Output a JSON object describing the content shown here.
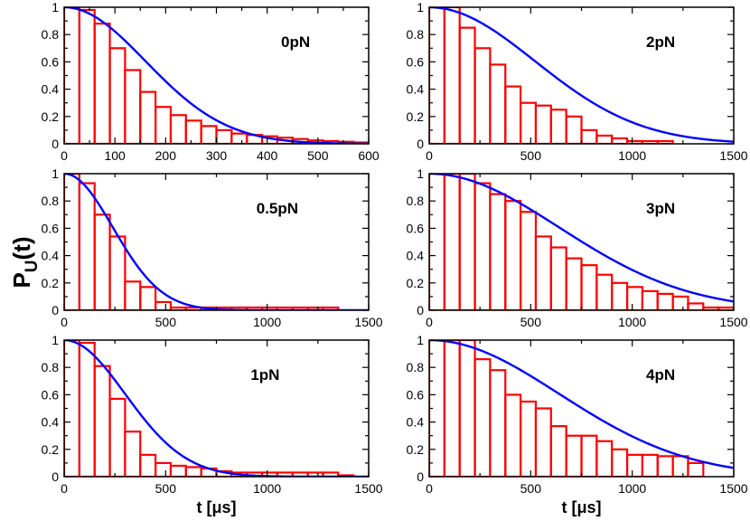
{
  "figure": {
    "ylabel_main": "P",
    "ylabel_sub": "U",
    "ylabel_suffix": "(t)",
    "bar_color": "#ff0000",
    "curve_color": "#0000ff"
  },
  "chart_data": [
    {
      "type": "bar",
      "label": "0pN",
      "xlabel": "",
      "xlim": [
        0,
        600
      ],
      "ylim": [
        0,
        1
      ],
      "xticks": [
        0,
        100,
        200,
        300,
        400,
        500,
        600
      ],
      "xtick_labels": [
        "0",
        "100",
        "200",
        "300",
        "400",
        "500",
        "600"
      ],
      "yticks": [
        0,
        0.2,
        0.4,
        0.6,
        0.8,
        1
      ],
      "ytick_labels": [
        "0",
        "0.2",
        "0.4",
        "0.6",
        "0.8",
        "1"
      ],
      "bin_edges": [
        0,
        30,
        60,
        90,
        120,
        150,
        180,
        210,
        240,
        270,
        300,
        330,
        360,
        390,
        420,
        450,
        480,
        510,
        540,
        570,
        600
      ],
      "values": [
        1.0,
        0.98,
        0.88,
        0.7,
        0.54,
        0.38,
        0.27,
        0.21,
        0.17,
        0.13,
        0.1,
        0.075,
        0.065,
        0.055,
        0.045,
        0.035,
        0.025,
        0.02,
        0.015,
        0.01
      ],
      "curve": {
        "type": "gaussian",
        "sigma": 160
      }
    },
    {
      "type": "bar",
      "label": "2pN",
      "xlabel": "",
      "xlim": [
        0,
        1500
      ],
      "ylim": [
        0,
        1
      ],
      "xticks": [
        0,
        500,
        1000,
        1500
      ],
      "xtick_labels": [
        "0",
        "500",
        "1000",
        "1500"
      ],
      "yticks": [
        0,
        0.2,
        0.4,
        0.6,
        0.8,
        1
      ],
      "ytick_labels": [
        "0",
        "0.2",
        "0.4",
        "0.6",
        "0.8",
        "1"
      ],
      "bin_edges": [
        0,
        75,
        150,
        225,
        300,
        375,
        450,
        525,
        600,
        675,
        750,
        825,
        900,
        975,
        1050,
        1125,
        1200
      ],
      "values": [
        1.0,
        1.0,
        0.85,
        0.7,
        0.58,
        0.42,
        0.3,
        0.28,
        0.25,
        0.2,
        0.1,
        0.06,
        0.04,
        0.02,
        0.02,
        0.02
      ],
      "curve": {
        "type": "gaussian",
        "sigma": 520
      }
    },
    {
      "type": "bar",
      "label": "0.5pN",
      "xlabel": "",
      "xlim": [
        0,
        1500
      ],
      "ylim": [
        0,
        1
      ],
      "xticks": [
        0,
        500,
        1000,
        1500
      ],
      "xtick_labels": [
        "0",
        "500",
        "1000",
        "1500"
      ],
      "yticks": [
        0,
        0.2,
        0.4,
        0.6,
        0.8,
        1
      ],
      "ytick_labels": [
        "0",
        "0.2",
        "0.4",
        "0.6",
        "0.8",
        "1"
      ],
      "bin_edges": [
        0,
        75,
        150,
        225,
        300,
        375,
        450,
        525,
        600,
        675,
        750,
        825,
        900,
        975,
        1050,
        1125,
        1200,
        1275,
        1350
      ],
      "values": [
        1.0,
        0.93,
        0.7,
        0.54,
        0.21,
        0.17,
        0.06,
        0.02,
        0.02,
        0.02,
        0.02,
        0.02,
        0.02,
        0.02,
        0.02,
        0.02,
        0.02,
        0.02
      ],
      "curve": {
        "type": "gaussian",
        "sigma": 240
      }
    },
    {
      "type": "bar",
      "label": "3pN",
      "xlabel": "",
      "xlim": [
        0,
        1500
      ],
      "ylim": [
        0,
        1
      ],
      "xticks": [
        0,
        500,
        1000,
        1500
      ],
      "xtick_labels": [
        "0",
        "500",
        "1000",
        "1500"
      ],
      "yticks": [
        0,
        0.2,
        0.4,
        0.6,
        0.8,
        1
      ],
      "ytick_labels": [
        "0",
        "0.2",
        "0.4",
        "0.6",
        "0.8",
        "1"
      ],
      "bin_edges": [
        0,
        75,
        150,
        225,
        300,
        375,
        450,
        525,
        600,
        675,
        750,
        825,
        900,
        975,
        1050,
        1125,
        1200,
        1275,
        1350,
        1425,
        1500
      ],
      "values": [
        1.0,
        1.0,
        1.0,
        0.93,
        0.85,
        0.8,
        0.72,
        0.54,
        0.46,
        0.38,
        0.33,
        0.26,
        0.2,
        0.17,
        0.14,
        0.12,
        0.1,
        0.05,
        0.02,
        0.02
      ],
      "curve": {
        "type": "gaussian",
        "sigma": 640
      }
    },
    {
      "type": "bar",
      "label": "1pN",
      "xlabel": "t [μs]",
      "xlim": [
        0,
        1500
      ],
      "ylim": [
        0,
        1
      ],
      "xticks": [
        0,
        500,
        1000,
        1500
      ],
      "xtick_labels": [
        "0",
        "500",
        "1000",
        "1500"
      ],
      "yticks": [
        0,
        0.2,
        0.4,
        0.6,
        0.8,
        1
      ],
      "ytick_labels": [
        "0",
        "0.2",
        "0.4",
        "0.6",
        "0.8",
        "1"
      ],
      "bin_edges": [
        0,
        75,
        150,
        225,
        300,
        375,
        450,
        525,
        600,
        675,
        750,
        825,
        900,
        975,
        1050,
        1125,
        1200,
        1275,
        1350,
        1425
      ],
      "values": [
        1.0,
        0.98,
        0.81,
        0.57,
        0.33,
        0.16,
        0.1,
        0.08,
        0.07,
        0.06,
        0.04,
        0.03,
        0.03,
        0.03,
        0.03,
        0.03,
        0.03,
        0.03,
        0.01
      ],
      "curve": {
        "type": "gaussian",
        "sigma": 300
      }
    },
    {
      "type": "bar",
      "label": "4pN",
      "xlabel": "t [μs]",
      "xlim": [
        0,
        1500
      ],
      "ylim": [
        0,
        1
      ],
      "xticks": [
        0,
        500,
        1000,
        1500
      ],
      "xtick_labels": [
        "0",
        "500",
        "1000",
        "1500"
      ],
      "yticks": [
        0,
        0.2,
        0.4,
        0.6,
        0.8,
        1
      ],
      "ytick_labels": [
        "0",
        "0.2",
        "0.4",
        "0.6",
        "0.8",
        "1"
      ],
      "bin_edges": [
        0,
        75,
        150,
        225,
        300,
        375,
        450,
        525,
        600,
        675,
        750,
        825,
        900,
        975,
        1050,
        1125,
        1200,
        1275,
        1350
      ],
      "values": [
        1.0,
        1.0,
        1.0,
        0.86,
        0.78,
        0.6,
        0.55,
        0.5,
        0.37,
        0.3,
        0.3,
        0.26,
        0.2,
        0.16,
        0.16,
        0.15,
        0.15,
        0.1
      ],
      "curve": {
        "type": "gaussian",
        "sigma": 640
      }
    }
  ]
}
